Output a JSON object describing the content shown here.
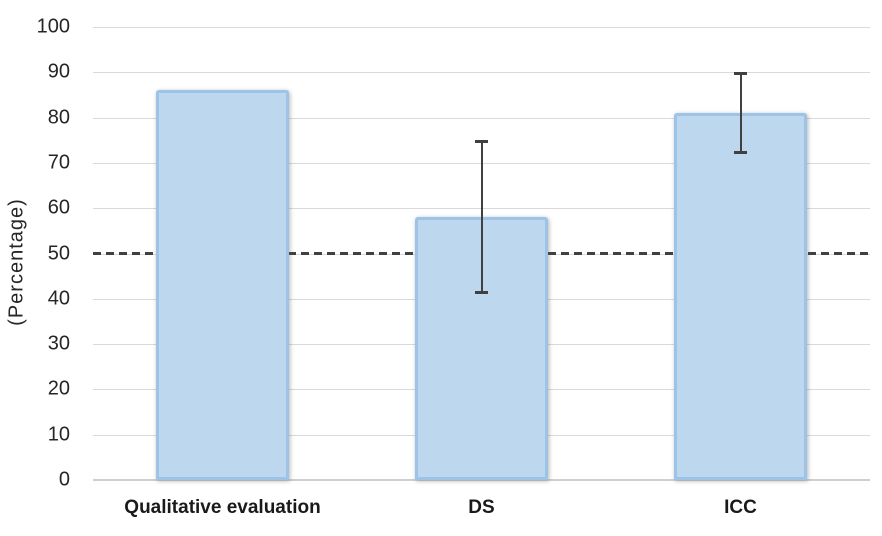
{
  "chart_data": {
    "type": "bar",
    "categories": [
      "Qualitative evaluation",
      "DS",
      "ICC"
    ],
    "values": [
      86,
      58,
      81
    ],
    "error_bars": [
      null,
      {
        "low": 41,
        "high": 75
      },
      {
        "low": 72,
        "high": 90
      }
    ],
    "title": "",
    "xlabel": "",
    "ylabel": "(Percentage)",
    "ylim": [
      0,
      100
    ],
    "yticks": [
      0,
      10,
      20,
      30,
      40,
      50,
      60,
      70,
      80,
      90,
      100
    ],
    "grid": true,
    "legend": "none",
    "reference_line": {
      "value": 50,
      "style": "dashed"
    },
    "colors": {
      "bar_fill": "#BDD7EE",
      "bar_border": "#9DC3E6",
      "gridline": "#D9D9D9",
      "axis_line": "#CFCFCF",
      "error_bar": "#404040",
      "reference_line": "#404040",
      "text": "#262626"
    }
  }
}
